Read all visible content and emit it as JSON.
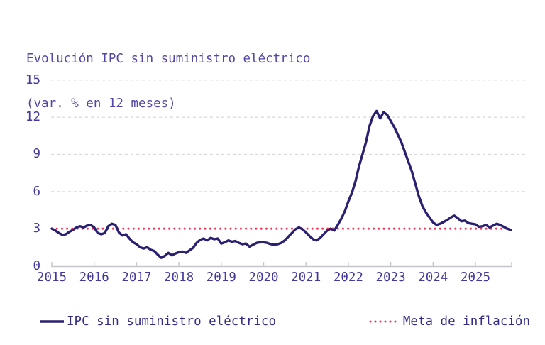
{
  "chart": {
    "title_line1": "Evolución IPC sin suministro eléctrico",
    "title_line2": "(var. % en 12 meses)",
    "colors": {
      "title_text": "#5346a6",
      "axis_label_text": "#43399c",
      "legend_text": "#332d87",
      "gridline": "#d9d9de",
      "axis_line": "#c6c6cc",
      "series_line": "#2a2072",
      "target_line": "#ef3a5c",
      "background": "#ffffff"
    }
  },
  "chart_data": {
    "type": "line",
    "title": "Evolución IPC sin suministro eléctrico",
    "subtitle": "(var. % en 12 meses)",
    "ylabel": "",
    "xlabel": "",
    "ylim": [
      0,
      15
    ],
    "y_ticks": [
      0,
      3,
      6,
      9,
      12,
      15
    ],
    "x_tick_labels": [
      "2015",
      "2016",
      "2017",
      "2018",
      "2019",
      "2020",
      "2021",
      "2022",
      "2023",
      "2024",
      "2025"
    ],
    "x_start_year": 2015,
    "frequency": "monthly",
    "grid": "horizontal-dashed",
    "legend_position": "bottom",
    "series": [
      {
        "name": "IPC sin suministro eléctrico",
        "color": "#2a2072",
        "style": "solid",
        "values": [
          3.0,
          2.85,
          2.65,
          2.5,
          2.55,
          2.75,
          2.9,
          3.1,
          3.2,
          3.1,
          3.25,
          3.3,
          3.1,
          2.65,
          2.55,
          2.65,
          3.2,
          3.4,
          3.3,
          2.7,
          2.45,
          2.55,
          2.2,
          1.9,
          1.75,
          1.5,
          1.4,
          1.5,
          1.3,
          1.2,
          0.9,
          0.65,
          0.8,
          1.05,
          0.85,
          1.0,
          1.1,
          1.15,
          1.05,
          1.25,
          1.45,
          1.85,
          2.1,
          2.2,
          2.05,
          2.25,
          2.15,
          2.2,
          1.8,
          1.9,
          2.05,
          1.95,
          2.0,
          1.85,
          1.75,
          1.8,
          1.55,
          1.7,
          1.85,
          1.9,
          1.9,
          1.85,
          1.75,
          1.7,
          1.75,
          1.85,
          2.05,
          2.35,
          2.65,
          2.95,
          3.1,
          2.95,
          2.7,
          2.4,
          2.15,
          2.05,
          2.25,
          2.55,
          2.85,
          3.0,
          2.85,
          3.3,
          3.8,
          4.4,
          5.2,
          5.9,
          6.8,
          8.0,
          9.0,
          10.0,
          11.3,
          12.1,
          12.5,
          11.9,
          12.4,
          12.2,
          11.7,
          11.2,
          10.6,
          10.0,
          9.2,
          8.4,
          7.6,
          6.6,
          5.6,
          4.8,
          4.3,
          3.9,
          3.5,
          3.3,
          3.4,
          3.55,
          3.7,
          3.9,
          4.05,
          3.85,
          3.6,
          3.65,
          3.45,
          3.4,
          3.35,
          3.15,
          3.2,
          3.3,
          3.1,
          3.25,
          3.4,
          3.3,
          3.15,
          3.0,
          2.9
        ]
      },
      {
        "name": "Meta de inflación",
        "color": "#ef3a5c",
        "style": "dotted",
        "constant_value": 3
      }
    ]
  }
}
